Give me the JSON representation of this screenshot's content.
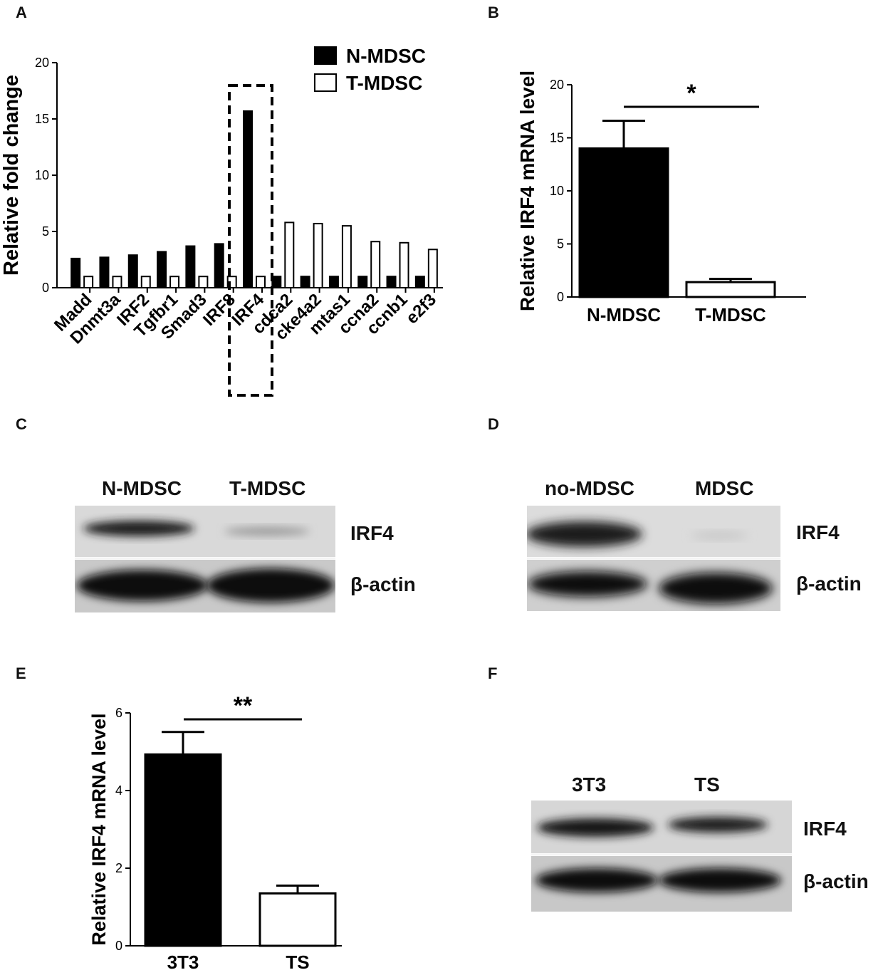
{
  "panels": {
    "A": "A",
    "B": "B",
    "C": "C",
    "D": "D",
    "E": "E",
    "F": "F"
  },
  "chart_data": [
    {
      "panel": "A",
      "type": "bar",
      "ylabel": "Relative fold change",
      "ylim": [
        0,
        20
      ],
      "yticks": [
        0,
        5,
        10,
        15,
        20
      ],
      "categories": [
        "Madd",
        "Dnmt3a",
        "IRF2",
        "Tgfbr1",
        "Smad3",
        "IRF8",
        "IRF4",
        "cdca2",
        "cke4a2",
        "mtas1",
        "ccna2",
        "ccnb1",
        "e2f3"
      ],
      "series": [
        {
          "name": "N-MDSC",
          "fill": "#000000",
          "values": [
            2.6,
            2.7,
            2.9,
            3.2,
            3.7,
            3.9,
            15.7,
            1.0,
            1.0,
            1.0,
            1.0,
            1.0,
            1.0
          ]
        },
        {
          "name": "T-MDSC",
          "fill": "#ffffff",
          "values": [
            1.0,
            1.0,
            1.0,
            1.0,
            1.0,
            1.0,
            1.0,
            5.8,
            5.7,
            5.5,
            4.1,
            4.0,
            3.4
          ]
        }
      ],
      "legend": "top-right",
      "highlight": "IRF4"
    },
    {
      "panel": "B",
      "type": "bar",
      "ylabel": "Relative IRF4 mRNA level",
      "ylim": [
        0,
        20
      ],
      "yticks": [
        0,
        5,
        10,
        15,
        20
      ],
      "categories": [
        "N-MDSC",
        "T-MDSC"
      ],
      "values": [
        14.0,
        1.4
      ],
      "errors": [
        2.6,
        0.3
      ],
      "fills": [
        "#000000",
        "#ffffff"
      ],
      "significance": "*"
    },
    {
      "panel": "E",
      "type": "bar",
      "ylabel": "Relative IRF4 mRNA level",
      "ylim": [
        0,
        6
      ],
      "yticks": [
        0,
        2,
        4,
        6
      ],
      "categories": [
        "3T3",
        "TS"
      ],
      "values": [
        4.93,
        1.35
      ],
      "errors": [
        0.58,
        0.2
      ],
      "fills": [
        "#000000",
        "#ffffff"
      ],
      "significance": "**"
    }
  ],
  "blots": {
    "C": {
      "lanes": [
        "N-MDSC",
        "T-MDSC"
      ],
      "bands": [
        "IRF4",
        "β-actin"
      ]
    },
    "D": {
      "lanes": [
        "no-MDSC",
        "MDSC"
      ],
      "bands": [
        "IRF4",
        "β-actin"
      ]
    },
    "F": {
      "lanes": [
        "3T3",
        "TS"
      ],
      "bands": [
        "IRF4",
        "β-actin"
      ]
    }
  }
}
